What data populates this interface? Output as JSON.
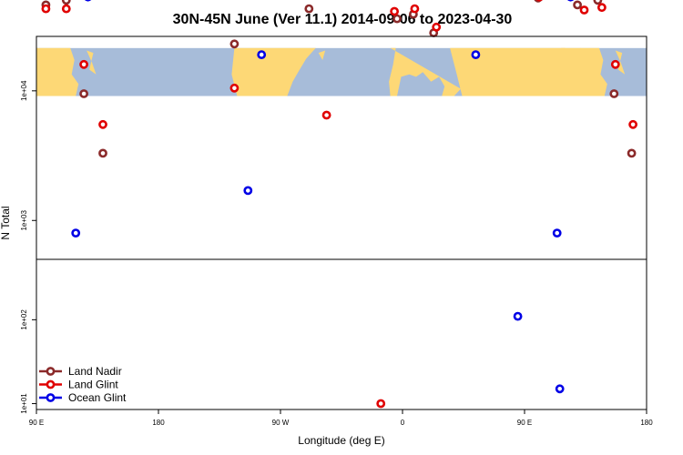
{
  "chart_data": {
    "type": "scatter",
    "title": "30N-45N June (Ver 11.1)   2014-09-06 to 2023-04-30",
    "xlabel": "Longitude (deg E)",
    "ylabel": "N Total",
    "x_ticks": [
      {
        "value": 90,
        "label": "90 E"
      },
      {
        "value": 180,
        "label": "180"
      },
      {
        "value": 270,
        "label": "90 W"
      },
      {
        "value": 360,
        "label": "0"
      },
      {
        "value": 450,
        "label": "90 E"
      },
      {
        "value": 540,
        "label": "180"
      }
    ],
    "y_ticks_upper": [
      {
        "value": 1000,
        "label": "1e+03"
      },
      {
        "value": 10000,
        "label": "1e+04"
      },
      {
        "value": 100000,
        "label": "1e+05"
      }
    ],
    "y_ticks_lower": [
      {
        "value": 10,
        "label": "1e+01"
      },
      {
        "value": 100,
        "label": "1e+02"
      }
    ],
    "xlim": [
      90,
      540
    ],
    "ylim_upper_log10": [
      2.7,
      4.42
    ],
    "ylim_lower_log10": [
      0.93,
      2.72
    ],
    "y_scale": "log",
    "map_band": {
      "lon_range": [
        90,
        540
      ],
      "log10_range": [
        3.96,
        4.33
      ],
      "ocean_color": "#a7bcd9",
      "land_color": "#fdd876"
    },
    "legend_position": "bottom-left",
    "series": [
      {
        "name": "Land Nadir",
        "color": "#8b2a2a",
        "points": [
          [
            97,
            46000
          ],
          [
            112,
            50000
          ],
          [
            125,
            9500
          ],
          [
            139,
            3300
          ],
          [
            236,
            23000
          ],
          [
            276,
            110000
          ],
          [
            291,
            43000
          ],
          [
            356,
            36000
          ],
          [
            368,
            39000
          ],
          [
            383,
            28000
          ],
          [
            409,
            88000
          ],
          [
            434,
            108000
          ],
          [
            449,
            100000
          ],
          [
            460,
            52000
          ],
          [
            489,
            46000
          ],
          [
            504,
            50000
          ],
          [
            516,
            9500
          ],
          [
            529,
            3300
          ]
        ]
      },
      {
        "name": "Land Glint",
        "color": "#e00000",
        "points": [
          [
            97,
            43000
          ],
          [
            112,
            43000
          ],
          [
            125,
            16000
          ],
          [
            139,
            5500
          ],
          [
            236,
            10500
          ],
          [
            266,
            115000
          ],
          [
            283,
            103000
          ],
          [
            304,
            6500
          ],
          [
            354,
            41000
          ],
          [
            369,
            43000
          ],
          [
            385,
            31000
          ],
          [
            400,
            93000
          ],
          [
            427,
            114000
          ],
          [
            443,
            104000
          ],
          [
            461,
            53000
          ],
          [
            494,
            42000
          ],
          [
            507,
            44000
          ],
          [
            517,
            16000
          ],
          [
            530,
            5500
          ],
          [
            344,
            10
          ]
        ]
      },
      {
        "name": "Ocean Glint",
        "color": "#0000e6",
        "points": [
          [
            119,
            800
          ],
          [
            128,
            53000
          ],
          [
            146,
            55000
          ],
          [
            161,
            75000
          ],
          [
            176,
            69000
          ],
          [
            191,
            81000
          ],
          [
            206,
            103000
          ],
          [
            221,
            107000
          ],
          [
            237,
            100000
          ],
          [
            246,
            1700
          ],
          [
            256,
            19000
          ],
          [
            281,
            62000
          ],
          [
            308,
            65000
          ],
          [
            327,
            122000
          ],
          [
            349,
            81000
          ],
          [
            360,
            78000
          ],
          [
            371,
            78000
          ],
          [
            388,
            96000
          ],
          [
            406,
            60000
          ],
          [
            414,
            19000
          ],
          [
            425,
            61000
          ],
          [
            445,
            110
          ],
          [
            476,
            15
          ],
          [
            474,
            800
          ],
          [
            484,
            53000
          ],
          [
            503,
            55000
          ],
          [
            518,
            75000
          ],
          [
            533,
            70000
          ]
        ]
      }
    ]
  }
}
